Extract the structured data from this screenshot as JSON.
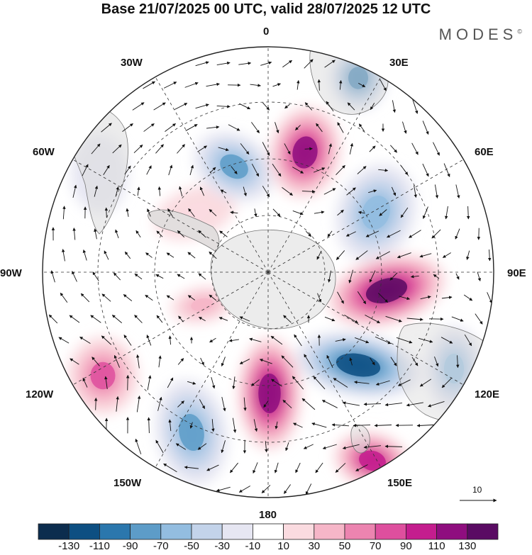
{
  "title": "Base 21/07/2025 00 UTC, valid 28/07/2025 12 UTC",
  "brand": "MODES",
  "brand_mark": "©",
  "longitude_labels": {
    "n": "0",
    "ne": "30E",
    "ene": "60E",
    "e": "90E",
    "ese": "120E",
    "se": "150E",
    "s": "180",
    "sw": "150W",
    "wsw": "120W",
    "w": "90W",
    "wnw": "60W",
    "nw": "30W"
  },
  "vector_reference": "10",
  "colorbar": {
    "labels": [
      "-130",
      "-110",
      "-90",
      "-70",
      "-50",
      "-30",
      "-10",
      "10",
      "30",
      "50",
      "70",
      "90",
      "110",
      "130"
    ],
    "colors": [
      "#0c2d4e",
      "#0d4f82",
      "#2b77ad",
      "#5d9cc8",
      "#93bde0",
      "#c3d3ea",
      "#e6e6f2",
      "#ffffff",
      "#fadbe0",
      "#f6b6c8",
      "#ec84b0",
      "#de4f9e",
      "#c41d8e",
      "#8f0e7f",
      "#5a0b63"
    ]
  },
  "anomalies": [
    {
      "name": "high-southwest-atlantic",
      "value": 25
    },
    {
      "name": "low-south-atlantic",
      "value": -75
    },
    {
      "name": "high-greenwich",
      "value": 110
    },
    {
      "name": "low-indian-west",
      "value": -100
    },
    {
      "name": "low-southwest-indian",
      "value": -70
    },
    {
      "name": "high-south-indian",
      "value": 135
    },
    {
      "name": "low-southeast-indian",
      "value": -115
    },
    {
      "name": "low-australia-south",
      "value": -70
    },
    {
      "name": "high-tasman",
      "value": 100
    },
    {
      "name": "high-ross",
      "value": 120
    },
    {
      "name": "low-south-pacific",
      "value": -75
    },
    {
      "name": "high-southeast-pacific",
      "value": 70
    },
    {
      "name": "low-bellingshausen",
      "value": -25
    },
    {
      "name": "high-weddell",
      "value": 40
    }
  ]
}
